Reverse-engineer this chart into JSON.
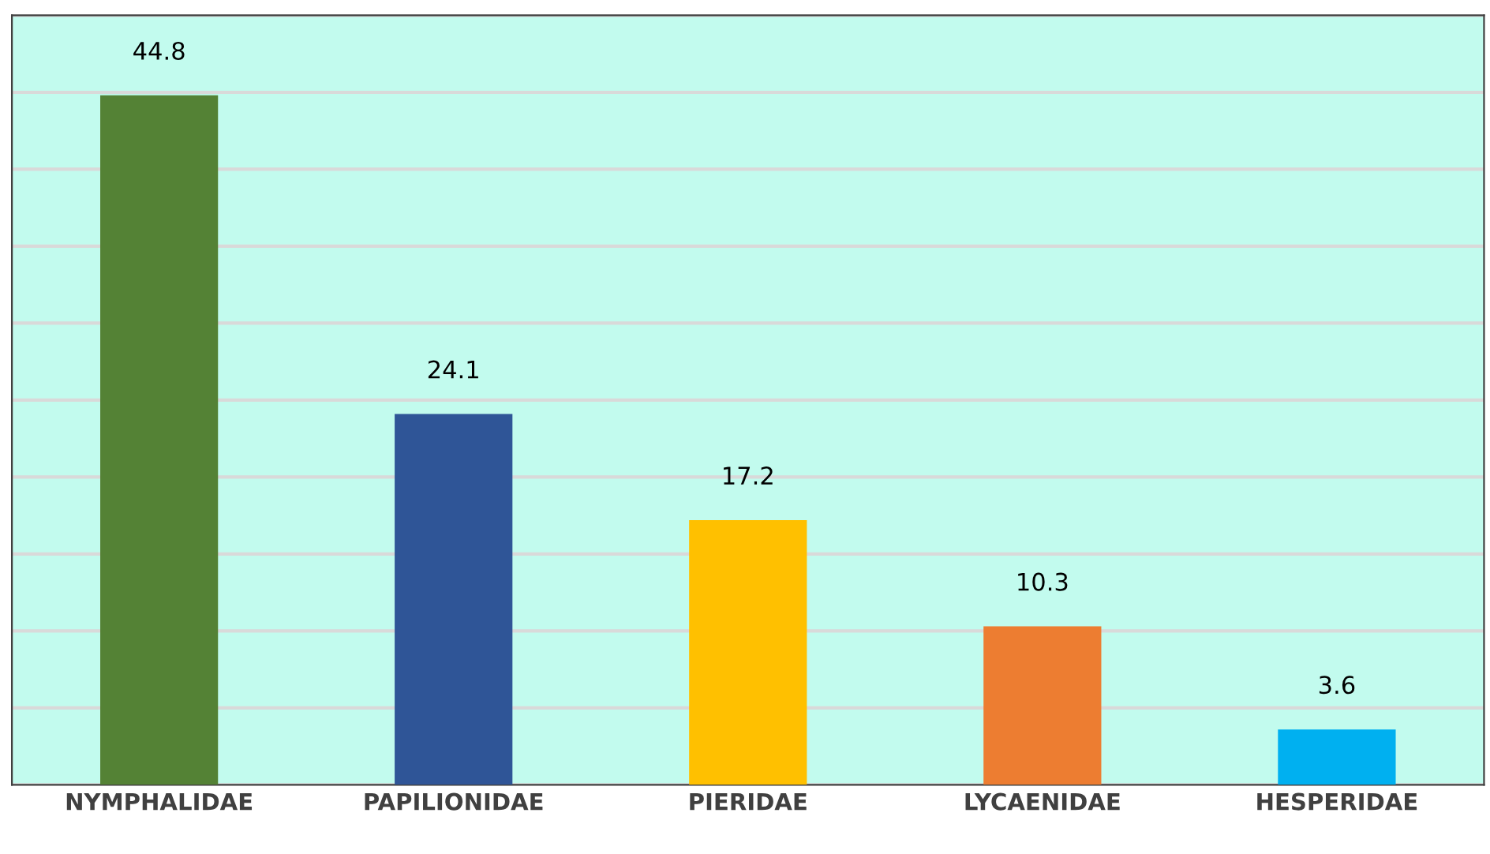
{
  "chart_data": {
    "type": "bar",
    "categories": [
      "NYMPHALIDAE",
      "PAPILIONIDAE",
      "PIERIDAE",
      "LYCAENIDAE",
      "HESPERIDAE"
    ],
    "values": [
      44.8,
      24.1,
      17.2,
      10.3,
      3.6
    ],
    "colors": [
      "#548235",
      "#2f5597",
      "#ffc000",
      "#ed7d31",
      "#00b0f0"
    ],
    "ylim": [
      0,
      50
    ],
    "yticks": [
      {
        "value": 0,
        "label": null
      },
      {
        "value": 5,
        "label": null
      },
      {
        "value": 10,
        "label": null
      },
      {
        "value": 15,
        "label": null
      },
      {
        "value": 20,
        "label": null
      },
      {
        "value": 25,
        "label": null
      },
      {
        "value": 30,
        "label": null
      },
      {
        "value": 35,
        "label": null
      },
      {
        "value": 40,
        "label": null
      },
      {
        "value": 45,
        "label": null
      },
      {
        "value": 50,
        "label": null
      }
    ],
    "grid": "y",
    "data_labels": true,
    "tick_labels": "x"
  }
}
